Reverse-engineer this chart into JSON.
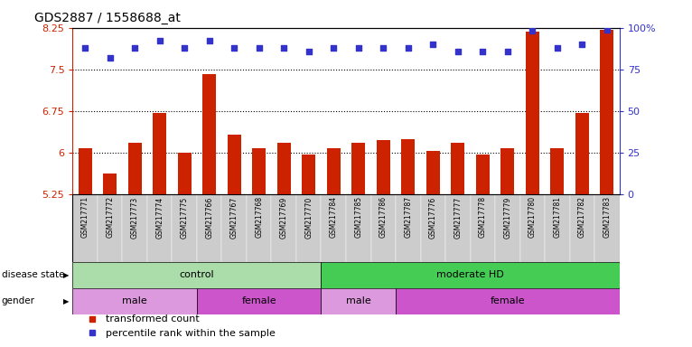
{
  "title": "GDS2887 / 1558688_at",
  "samples": [
    "GSM217771",
    "GSM217772",
    "GSM217773",
    "GSM217774",
    "GSM217775",
    "GSM217766",
    "GSM217767",
    "GSM217768",
    "GSM217769",
    "GSM217770",
    "GSM217784",
    "GSM217785",
    "GSM217786",
    "GSM217787",
    "GSM217776",
    "GSM217777",
    "GSM217778",
    "GSM217779",
    "GSM217780",
    "GSM217781",
    "GSM217782",
    "GSM217783"
  ],
  "bar_values": [
    6.08,
    5.62,
    6.18,
    6.72,
    6.0,
    7.42,
    6.32,
    6.08,
    6.18,
    5.97,
    6.08,
    6.18,
    6.22,
    6.25,
    6.03,
    6.18,
    5.97,
    6.08,
    8.18,
    6.08,
    6.72,
    8.22
  ],
  "dot_values": [
    88,
    82,
    88,
    92,
    88,
    92,
    88,
    88,
    88,
    86,
    88,
    88,
    88,
    88,
    90,
    86,
    86,
    86,
    98,
    88,
    90,
    99
  ],
  "bar_color": "#cc2200",
  "dot_color": "#3333cc",
  "ylim_left": [
    5.25,
    8.25
  ],
  "ylim_right": [
    0,
    100
  ],
  "yticks_left": [
    5.25,
    6.0,
    6.75,
    7.5,
    8.25
  ],
  "yticks_right": [
    0,
    25,
    50,
    75,
    100
  ],
  "ytick_labels_left": [
    "5.25",
    "6",
    "6.75",
    "7.5",
    "8.25"
  ],
  "ytick_labels_right": [
    "0",
    "25",
    "50",
    "75",
    "100%"
  ],
  "hlines": [
    6.0,
    6.75,
    7.5
  ],
  "disease_groups": [
    {
      "label": "control",
      "start": 0,
      "end": 10,
      "color": "#aaddaa"
    },
    {
      "label": "moderate HD",
      "start": 10,
      "end": 22,
      "color": "#44cc55"
    }
  ],
  "gender_groups": [
    {
      "label": "male",
      "start": 0,
      "end": 5,
      "color": "#dd99dd"
    },
    {
      "label": "female",
      "start": 5,
      "end": 10,
      "color": "#cc55cc"
    },
    {
      "label": "male",
      "start": 10,
      "end": 13,
      "color": "#dd99dd"
    },
    {
      "label": "female",
      "start": 13,
      "end": 22,
      "color": "#cc55cc"
    }
  ],
  "disease_label": "disease state",
  "gender_label": "gender",
  "legend_bar_label": "transformed count",
  "legend_dot_label": "percentile rank within the sample",
  "bar_width": 0.55,
  "background_color": "#ffffff",
  "tick_area_color": "#cccccc"
}
